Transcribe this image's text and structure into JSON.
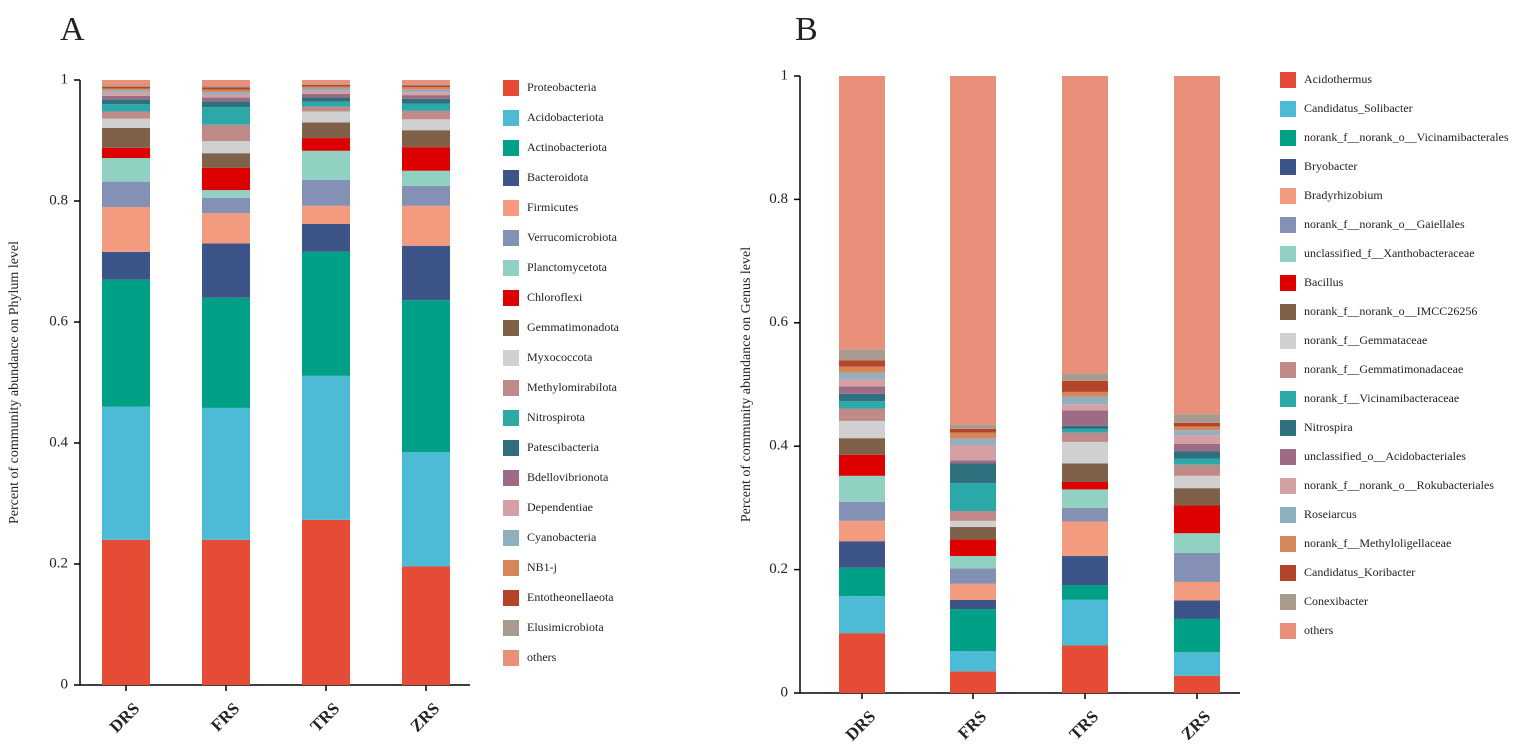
{
  "chart_data": [
    {
      "type": "bar",
      "stacked": true,
      "title": "A",
      "ylabel": "Percent of community abundance on Phylum level",
      "categories": [
        "DRS",
        "FRS",
        "TRS",
        "ZRS"
      ],
      "ylim": [
        0,
        1
      ],
      "yticks": [
        0,
        0.2,
        0.4,
        0.6,
        0.8,
        1
      ],
      "legend": "right",
      "series": [
        {
          "name": "Proteobacteria",
          "color": "#e64b35",
          "values": [
            0.24,
            0.24,
            0.273,
            0.196
          ]
        },
        {
          "name": "Acidobacteriota",
          "color": "#4dbbd5",
          "values": [
            0.22,
            0.218,
            0.238,
            0.189
          ]
        },
        {
          "name": "Actinobacteriota",
          "color": "#00a087",
          "values": [
            0.21,
            0.182,
            0.205,
            0.251
          ]
        },
        {
          "name": "Bacteroidota",
          "color": "#3c5488",
          "values": [
            0.046,
            0.09,
            0.046,
            0.09
          ]
        },
        {
          "name": "Firmicutes",
          "color": "#f39b7f",
          "values": [
            0.074,
            0.05,
            0.03,
            0.066
          ]
        },
        {
          "name": "Verrucomicrobiota",
          "color": "#8491b4",
          "values": [
            0.042,
            0.025,
            0.043,
            0.033
          ]
        },
        {
          "name": "Planctomycetota",
          "color": "#91d1c2",
          "values": [
            0.039,
            0.013,
            0.048,
            0.025
          ]
        },
        {
          "name": "Chloroflexi",
          "color": "#dc0000",
          "values": [
            0.017,
            0.037,
            0.021,
            0.039
          ]
        },
        {
          "name": "Gemmatimonadota",
          "color": "#7e6148",
          "values": [
            0.033,
            0.024,
            0.026,
            0.028
          ]
        },
        {
          "name": "Myxococcota",
          "color": "#d0d0d0",
          "values": [
            0.015,
            0.02,
            0.018,
            0.018
          ]
        },
        {
          "name": "Methylomirabilota",
          "color": "#c08a88",
          "values": [
            0.012,
            0.027,
            0.008,
            0.014
          ]
        },
        {
          "name": "Nitrospirota",
          "color": "#2ba8a8",
          "values": [
            0.012,
            0.029,
            0.008,
            0.012
          ]
        },
        {
          "name": "Patescibacteria",
          "color": "#2f6f7e",
          "values": [
            0.008,
            0.01,
            0.007,
            0.008
          ]
        },
        {
          "name": "Bdellovibrionota",
          "color": "#9c6b85",
          "values": [
            0.006,
            0.006,
            0.006,
            0.006
          ]
        },
        {
          "name": "Dependentiae",
          "color": "#d4a0a4",
          "values": [
            0.005,
            0.005,
            0.005,
            0.005
          ]
        },
        {
          "name": "Cyanobacteria",
          "color": "#8fb0c0",
          "values": [
            0.004,
            0.004,
            0.004,
            0.004
          ]
        },
        {
          "name": "NB1-j",
          "color": "#d6875a",
          "values": [
            0.003,
            0.004,
            0.003,
            0.004
          ]
        },
        {
          "name": "Entotheonellaeota",
          "color": "#b5452a",
          "values": [
            0.003,
            0.004,
            0.003,
            0.003
          ]
        },
        {
          "name": "Elusimicrobiota",
          "color": "#a89a8c",
          "values": [
            0.002,
            0.002,
            0.002,
            0.002
          ]
        },
        {
          "name": "others",
          "color": "#e8907a",
          "values": [
            0.009,
            0.01,
            0.006,
            0.007
          ]
        }
      ]
    },
    {
      "type": "bar",
      "stacked": true,
      "title": "B",
      "ylabel": "Percent of community abundance on Genus level",
      "categories": [
        "DRS",
        "FRS",
        "TRS",
        "ZRS"
      ],
      "ylim": [
        0,
        1
      ],
      "yticks": [
        0,
        0.2,
        0.4,
        0.6,
        0.8,
        1
      ],
      "legend": "right",
      "series": [
        {
          "name": "Acidothermus",
          "color": "#e64b35",
          "values": [
            0.097,
            0.035,
            0.077,
            0.028
          ]
        },
        {
          "name": "Candidatus_Solibacter",
          "color": "#4dbbd5",
          "values": [
            0.06,
            0.033,
            0.074,
            0.038
          ]
        },
        {
          "name": "norank_f__norank_o__Vicinamibacterales",
          "color": "#00a087",
          "values": [
            0.046,
            0.068,
            0.024,
            0.054
          ]
        },
        {
          "name": "Bryobacter",
          "color": "#3c5488",
          "values": [
            0.043,
            0.015,
            0.047,
            0.03
          ]
        },
        {
          "name": "Bradyrhizobium",
          "color": "#f39b7f",
          "values": [
            0.033,
            0.026,
            0.056,
            0.03
          ]
        },
        {
          "name": "norank_f__norank_o__Gaiellales",
          "color": "#8491b4",
          "values": [
            0.031,
            0.025,
            0.022,
            0.047
          ]
        },
        {
          "name": "unclassified_f__Xanthobacteraceae",
          "color": "#91d1c2",
          "values": [
            0.042,
            0.02,
            0.03,
            0.032
          ]
        },
        {
          "name": "Bacillus",
          "color": "#dc0000",
          "values": [
            0.034,
            0.027,
            0.012,
            0.045
          ]
        },
        {
          "name": "norank_f__norank_o__IMCC26256",
          "color": "#7e6148",
          "values": [
            0.027,
            0.02,
            0.03,
            0.028
          ]
        },
        {
          "name": "norank_f__Gemmataceae",
          "color": "#d0d0d0",
          "values": [
            0.028,
            0.01,
            0.035,
            0.02
          ]
        },
        {
          "name": "norank_f__Gemmatimonadaceae",
          "color": "#c08a88",
          "values": [
            0.02,
            0.016,
            0.015,
            0.018
          ]
        },
        {
          "name": "norank_f__Vicinamibacteraceae",
          "color": "#2ba8a8",
          "values": [
            0.012,
            0.045,
            0.006,
            0.01
          ]
        },
        {
          "name": "Nitrospira",
          "color": "#2f6f7e",
          "values": [
            0.012,
            0.032,
            0.005,
            0.012
          ]
        },
        {
          "name": "unclassified_o__Acidobacteriales",
          "color": "#9c6b85",
          "values": [
            0.012,
            0.005,
            0.025,
            0.012
          ]
        },
        {
          "name": "norank_f__norank_o__Rokubacteriales",
          "color": "#d4a0a4",
          "values": [
            0.012,
            0.025,
            0.01,
            0.014
          ]
        },
        {
          "name": "Roseiarcus",
          "color": "#8fb0c0",
          "values": [
            0.01,
            0.01,
            0.012,
            0.008
          ]
        },
        {
          "name": "norank_f__Methyloligellaceae",
          "color": "#d6875a",
          "values": [
            0.01,
            0.01,
            0.008,
            0.006
          ]
        },
        {
          "name": "Candidatus_Koribacter",
          "color": "#b5452a",
          "values": [
            0.01,
            0.006,
            0.018,
            0.006
          ]
        },
        {
          "name": "Conexibacter",
          "color": "#a89a8c",
          "values": [
            0.018,
            0.007,
            0.012,
            0.014
          ]
        },
        {
          "name": "others",
          "color": "#e8907a",
          "values": [
            0.443,
            0.565,
            0.482,
            0.548
          ]
        }
      ]
    }
  ]
}
